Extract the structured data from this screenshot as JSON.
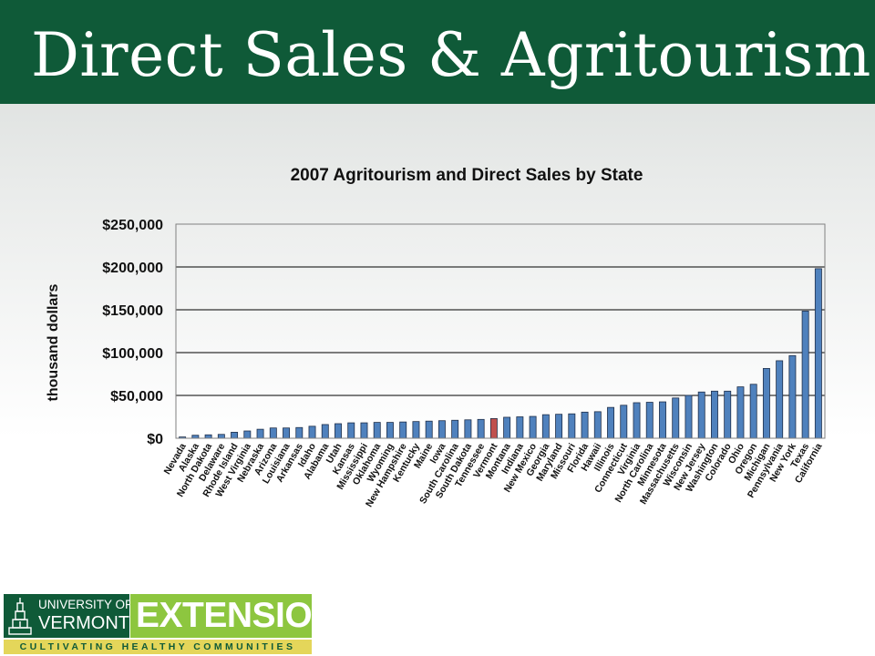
{
  "slide": {
    "title": "Direct Sales & Agritourism"
  },
  "logo": {
    "university": "UNIVERSITY OF",
    "vermont": "VERMONT",
    "extension": "EXTENSION",
    "tagline": "CULTIVATING HEALTHY COMMUNITIES"
  },
  "chart_data": {
    "type": "bar",
    "title": "2007 Agritourism and Direct Sales by State",
    "xlabel": "",
    "ylabel": "thousand dollars",
    "ylim": [
      0,
      250000
    ],
    "yticks": [
      0,
      50000,
      100000,
      150000,
      200000,
      250000
    ],
    "ytick_labels": [
      "$0",
      "$50,000",
      "$100,000",
      "$150,000",
      "$200,000",
      "$250,000"
    ],
    "grid": true,
    "bar_color": "#4f81bd",
    "highlight_color": "#c0504d",
    "highlight_category": "Vermont",
    "categories": [
      "Nevada",
      "Alaska",
      "North Dakota",
      "Delaware",
      "Rhode Island",
      "West Virginia",
      "Nebraska",
      "Arizona",
      "Louisiana",
      "Arkansas",
      "Idaho",
      "Alabama",
      "Utah",
      "Kansas",
      "Mississippi",
      "Oklahoma",
      "Wyoming",
      "New Hampshire",
      "Kentucky",
      "Maine",
      "Iowa",
      "South Carolina",
      "South Dakota",
      "Tennessee",
      "Vermont",
      "Montana",
      "Indiana",
      "New Mexico",
      "Georgia",
      "Maryland",
      "Missouri",
      "Florida",
      "Hawaii",
      "Illinois",
      "Connecticut",
      "Virginia",
      "North Carolina",
      "Minnesota",
      "Massachusetts",
      "Wisconsin",
      "New Jersey",
      "Washington",
      "Colorado",
      "Ohio",
      "Oregon",
      "Michigan",
      "Pennsylvania",
      "New York",
      "Texas",
      "California"
    ],
    "values": [
      1500,
      3500,
      4000,
      4500,
      7000,
      8500,
      10500,
      12000,
      12000,
      12500,
      14000,
      16000,
      17000,
      18000,
      18000,
      18500,
      18500,
      19000,
      19500,
      20000,
      20500,
      21000,
      21500,
      22000,
      23000,
      24500,
      25000,
      25500,
      27500,
      28000,
      28500,
      30500,
      31000,
      36000,
      38500,
      41500,
      42000,
      42500,
      47000,
      50000,
      54000,
      55000,
      55000,
      60000,
      63000,
      81500,
      90500,
      96500,
      148500,
      198000
    ]
  }
}
